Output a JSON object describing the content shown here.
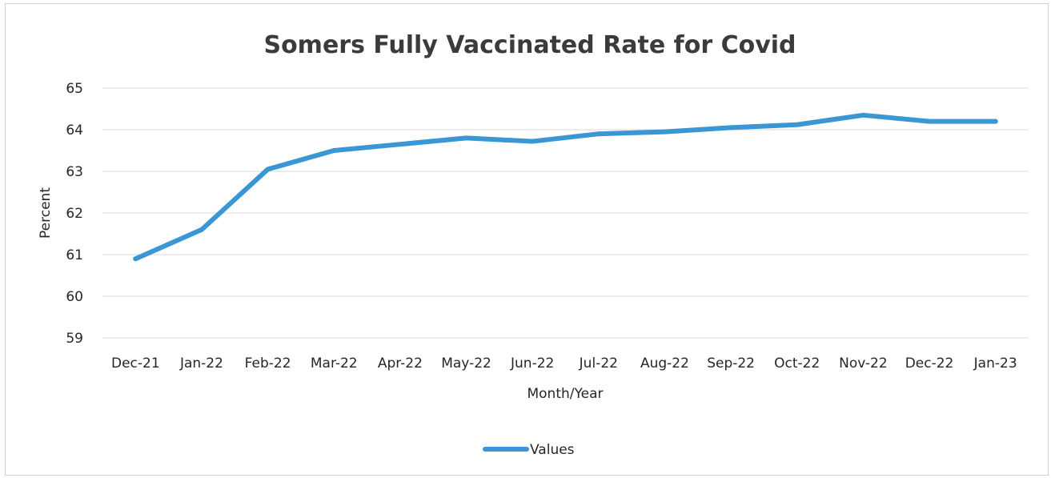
{
  "chart_data": {
    "type": "line",
    "title": "Somers Fully Vaccinated Rate for Covid",
    "xlabel": "Month/Year",
    "ylabel": "Percent",
    "ylim": [
      59,
      65
    ],
    "yticks": [
      59,
      60,
      61,
      62,
      63,
      64,
      65
    ],
    "grid": true,
    "legend_position": "bottom",
    "categories": [
      "Dec-21",
      "Jan-22",
      "Feb-22",
      "Mar-22",
      "Apr-22",
      "May-22",
      "Jun-22",
      "Jul-22",
      "Aug-22",
      "Sep-22",
      "Oct-22",
      "Nov-22",
      "Dec-22",
      "Jan-23"
    ],
    "series": [
      {
        "name": "Values",
        "color": "#3a96d4",
        "values": [
          60.9,
          61.6,
          63.05,
          63.5,
          63.65,
          63.8,
          63.72,
          63.9,
          63.95,
          64.05,
          64.12,
          64.35,
          64.2,
          64.2
        ]
      }
    ]
  }
}
